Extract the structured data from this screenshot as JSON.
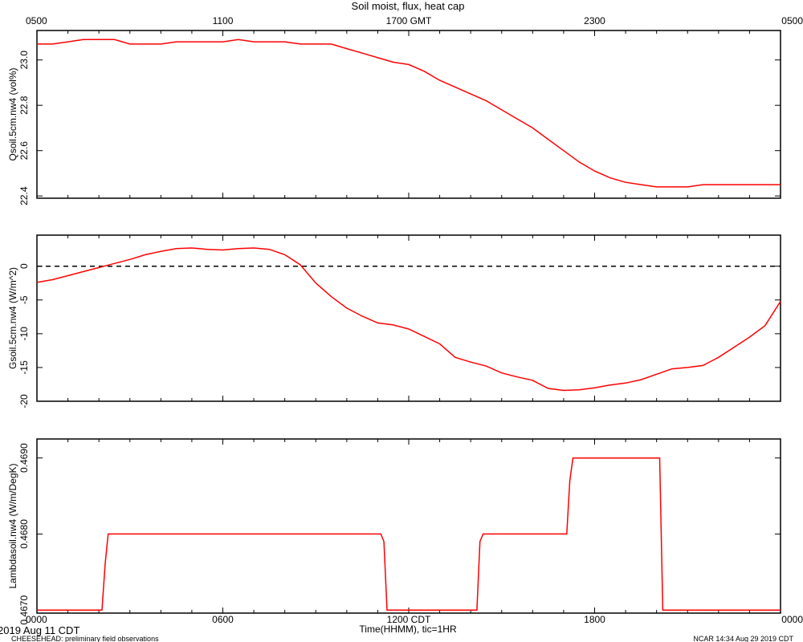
{
  "title": "Soil moist, flux, heat cap",
  "footer": {
    "date_label": "2019 Aug 11 CDT",
    "project_label": "CHEESEHEAD: preliminary field observations",
    "credit_label": "NCAR 14:34 Aug 29 2019 CDT"
  },
  "colors": {
    "series": "#ff0000",
    "axis": "#000000",
    "zero_line": "#000000"
  },
  "chart_data": [
    {
      "type": "line",
      "ylabel": "Qsoil.5cm.nw4 (vol%)",
      "xlim": [
        0,
        24
      ],
      "ylim": [
        22.39,
        23.13
      ],
      "yticks": [
        22.4,
        22.6,
        22.8,
        23.0
      ],
      "ytick_labels": [
        "22.4",
        "22.6",
        "22.8",
        "23.0"
      ],
      "top_axis_labels": [
        "0500",
        "1100",
        "1700 GMT",
        "2300",
        "0500"
      ],
      "grid": false,
      "series": [
        {
          "x": [
            0,
            0.5,
            1,
            1.5,
            2,
            2.5,
            3,
            3.5,
            4,
            4.5,
            5,
            5.5,
            6,
            6.5,
            7,
            7.5,
            8,
            8.5,
            9,
            9.5,
            10,
            10.5,
            11,
            11.5,
            12,
            12.5,
            13,
            13.5,
            14,
            14.5,
            15,
            15.5,
            16,
            16.5,
            17,
            17.5,
            18,
            18.5,
            19,
            19.5,
            20,
            20.5,
            21,
            21.5,
            22,
            22.5,
            23,
            23.5,
            24
          ],
          "y": [
            23.07,
            23.07,
            23.08,
            23.09,
            23.09,
            23.09,
            23.07,
            23.07,
            23.07,
            23.08,
            23.08,
            23.08,
            23.08,
            23.09,
            23.08,
            23.08,
            23.08,
            23.07,
            23.07,
            23.07,
            23.05,
            23.03,
            23.01,
            22.99,
            22.98,
            22.95,
            22.91,
            22.88,
            22.85,
            22.82,
            22.78,
            22.74,
            22.7,
            22.65,
            22.6,
            22.55,
            22.51,
            22.48,
            22.46,
            22.45,
            22.44,
            22.44,
            22.44,
            22.45,
            22.45,
            22.45,
            22.45,
            22.45,
            22.45
          ]
        }
      ]
    },
    {
      "type": "line",
      "ylabel": "Gsoil.5cm.nw4 (W/m^2)",
      "xlim": [
        0,
        24
      ],
      "ylim": [
        -20,
        4.6
      ],
      "yticks": [
        -20,
        -15,
        -10,
        -5,
        0
      ],
      "ytick_labels": [
        "-20",
        "-15",
        "-10",
        "-5",
        "0"
      ],
      "reference_line": 0,
      "grid": false,
      "series": [
        {
          "x": [
            0,
            0.5,
            1,
            1.5,
            2,
            2.5,
            3,
            3.5,
            4,
            4.5,
            5,
            5.5,
            6,
            6.5,
            7,
            7.5,
            8,
            8.5,
            9,
            9.5,
            10,
            10.5,
            11,
            11.5,
            12,
            12.5,
            13,
            13.5,
            14,
            14.5,
            15,
            15.5,
            16,
            16.5,
            17,
            17.5,
            18,
            18.5,
            19,
            19.5,
            20,
            20.5,
            21,
            21.5,
            22,
            22.5,
            23,
            23.5,
            24
          ],
          "y": [
            -2.4,
            -2.0,
            -1.4,
            -0.8,
            -0.2,
            0.4,
            1.0,
            1.7,
            2.2,
            2.6,
            2.7,
            2.5,
            2.4,
            2.6,
            2.7,
            2.5,
            1.7,
            0.2,
            -2.5,
            -4.5,
            -6.2,
            -7.4,
            -8.4,
            -8.7,
            -9.3,
            -10.4,
            -11.5,
            -13.5,
            -14.2,
            -14.8,
            -15.8,
            -16.4,
            -16.9,
            -18.1,
            -18.4,
            -18.3,
            -18.0,
            -17.6,
            -17.3,
            -16.8,
            -16.0,
            -15.2,
            -15.0,
            -14.7,
            -13.5,
            -12.0,
            -10.5,
            -8.8,
            -5.2
          ]
        }
      ]
    },
    {
      "type": "line",
      "ylabel": "Lambdasoil.nw4 (W/m/DegK)",
      "xlabel": "Time(HHMM), tic=1HR",
      "xlim": [
        0,
        24
      ],
      "ylim": [
        0.46696,
        0.46925
      ],
      "yticks": [
        0.467,
        0.468,
        0.469
      ],
      "ytick_labels": [
        "0.4670",
        "0.4680",
        "0.4690"
      ],
      "bottom_axis_labels": [
        "0000",
        "0600",
        "1200 CDT",
        "1800",
        "0000"
      ],
      "grid": false,
      "series": [
        {
          "x": [
            0,
            2.1,
            2.2,
            2.3,
            11.1,
            11.2,
            11.3,
            14.2,
            14.3,
            14.4,
            17.1,
            17.2,
            17.3,
            20.1,
            20.2,
            24
          ],
          "y": [
            0.467,
            0.467,
            0.4676,
            0.468,
            0.468,
            0.4679,
            0.467,
            0.467,
            0.4679,
            0.468,
            0.468,
            0.4687,
            0.469,
            0.469,
            0.467,
            0.467
          ]
        }
      ]
    }
  ]
}
